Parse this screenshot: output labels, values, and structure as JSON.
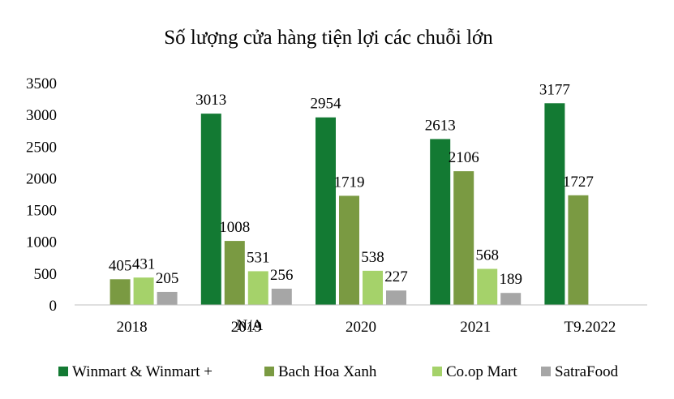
{
  "chart_data": {
    "type": "bar",
    "title": "Số lượng cửa hàng tiện lợi các chuỗi lớn",
    "categories": [
      "2018",
      "2019",
      "2020",
      "2021",
      "T9.2022"
    ],
    "ylim": [
      0,
      3500
    ],
    "yticks": [
      "0",
      "500",
      "1000",
      "1500",
      "2000",
      "2500",
      "3000",
      "3500"
    ],
    "series": [
      {
        "name": "Winmart & Winmart +",
        "color": "#137a33",
        "values": [
          null,
          3013,
          2954,
          2613,
          3177
        ],
        "labels": [
          "",
          "3013",
          "2954",
          "2613",
          "3177"
        ]
      },
      {
        "name": "Bach Hoa Xanh",
        "color": "#7a9a42",
        "values": [
          405,
          1008,
          1719,
          2106,
          1727
        ],
        "labels": [
          "405",
          "1008",
          "1719",
          "2106",
          "1727"
        ]
      },
      {
        "name": "Co.op Mart",
        "color": "#a5d26a",
        "values": [
          431,
          531,
          538,
          568,
          null
        ],
        "labels": [
          "431",
          "531",
          "538",
          "568",
          ""
        ]
      },
      {
        "name": "SatraFood",
        "color": "#a6a6a6",
        "values": [
          205,
          256,
          227,
          189,
          null
        ],
        "labels": [
          "205",
          "256",
          "227",
          "189",
          ""
        ]
      }
    ],
    "annotations": [
      {
        "text": "N/A",
        "category": "2019"
      }
    ],
    "grid": false,
    "legend_position": "bottom"
  }
}
